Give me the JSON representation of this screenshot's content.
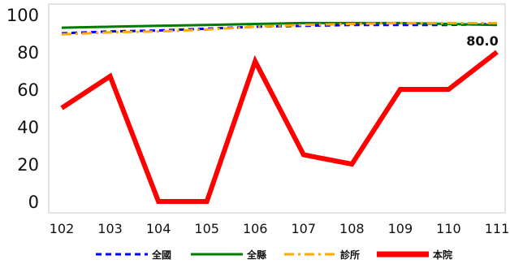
{
  "chart_data": {
    "type": "line",
    "title": "",
    "xlabel": "",
    "ylabel": "",
    "x": [
      "102",
      "103",
      "104",
      "105",
      "106",
      "107",
      "108",
      "109",
      "110",
      "111"
    ],
    "ylim": [
      0,
      100
    ],
    "yticks": [
      0,
      20,
      40,
      60,
      80,
      100
    ],
    "grid": false,
    "legend_position": "bottom",
    "series": [
      {
        "name": "全國",
        "color": "#0000ff",
        "style": "dashed",
        "values": [
          90,
          91,
          91.5,
          92.5,
          93.5,
          94,
          94.5,
          94.5,
          94.5,
          95
        ]
      },
      {
        "name": "全縣",
        "color": "#007a00",
        "style": "solid",
        "values": [
          93,
          93.5,
          94,
          94.5,
          95,
          95.5,
          95.5,
          95.5,
          95,
          94.5
        ]
      },
      {
        "name": "診所",
        "color": "#ffaa00",
        "style": "dashdot",
        "values": [
          89.5,
          90.5,
          91,
          92,
          93.5,
          94.5,
          95,
          95.5,
          95.5,
          95.5
        ]
      },
      {
        "name": "本院",
        "color": "#ff0000",
        "style": "solid",
        "values": [
          50,
          67,
          0,
          0,
          75,
          25,
          20,
          60,
          60,
          80
        ]
      }
    ],
    "annotations": [
      {
        "series": "本院",
        "x": "111",
        "text": "80.0"
      }
    ]
  }
}
